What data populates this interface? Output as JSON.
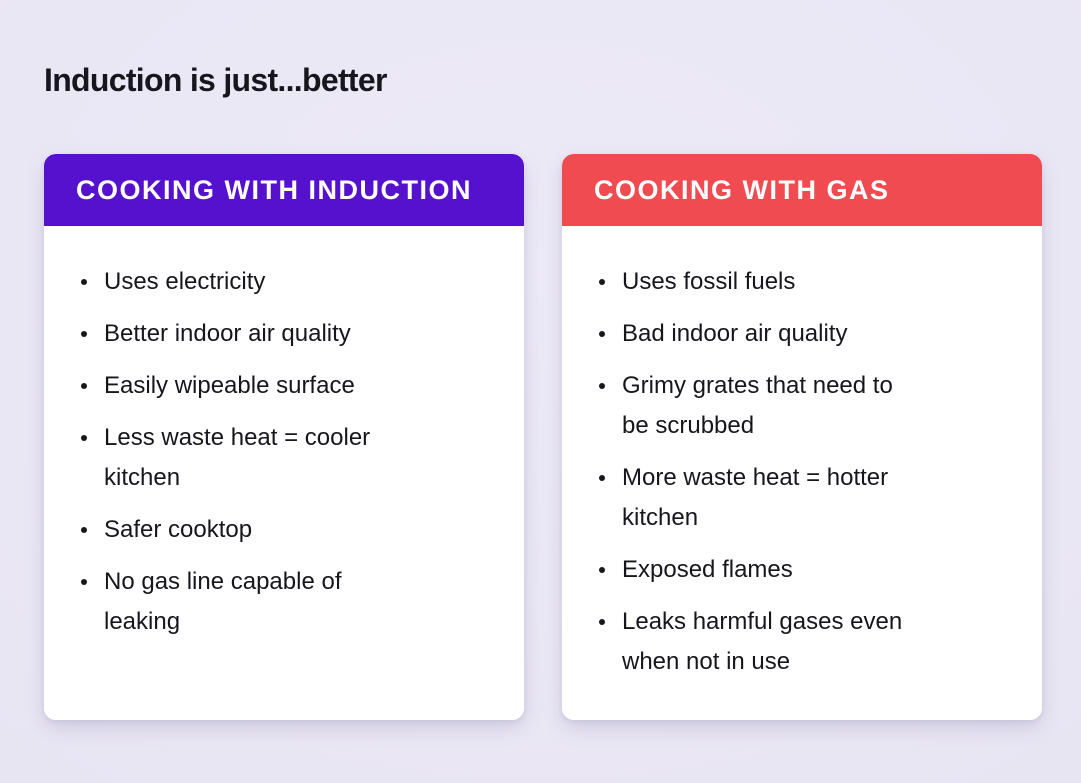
{
  "page": {
    "title": "Induction is just...better",
    "background_color": "#e9e6f4",
    "text_color": "#17161d"
  },
  "cards": [
    {
      "title": "COOKING WITH INDUCTION",
      "header_color": "#5511cd",
      "header_text_color": "#ffffff",
      "items": [
        "Uses electricity",
        "Better indoor air quality",
        "Easily wipeable surface",
        "Less waste heat = cooler\nkitchen",
        "Safer cooktop",
        "No gas line capable of\nleaking"
      ]
    },
    {
      "title": "COOKING WITH GAS",
      "header_color": "#f04b51",
      "header_text_color": "#ffffff",
      "items": [
        "Uses fossil fuels",
        "Bad indoor air quality",
        "Grimy grates that need to\nbe scrubbed",
        "More waste heat = hotter\nkitchen",
        "Exposed flames",
        "Leaks harmful gases even\nwhen not in use"
      ]
    }
  ]
}
